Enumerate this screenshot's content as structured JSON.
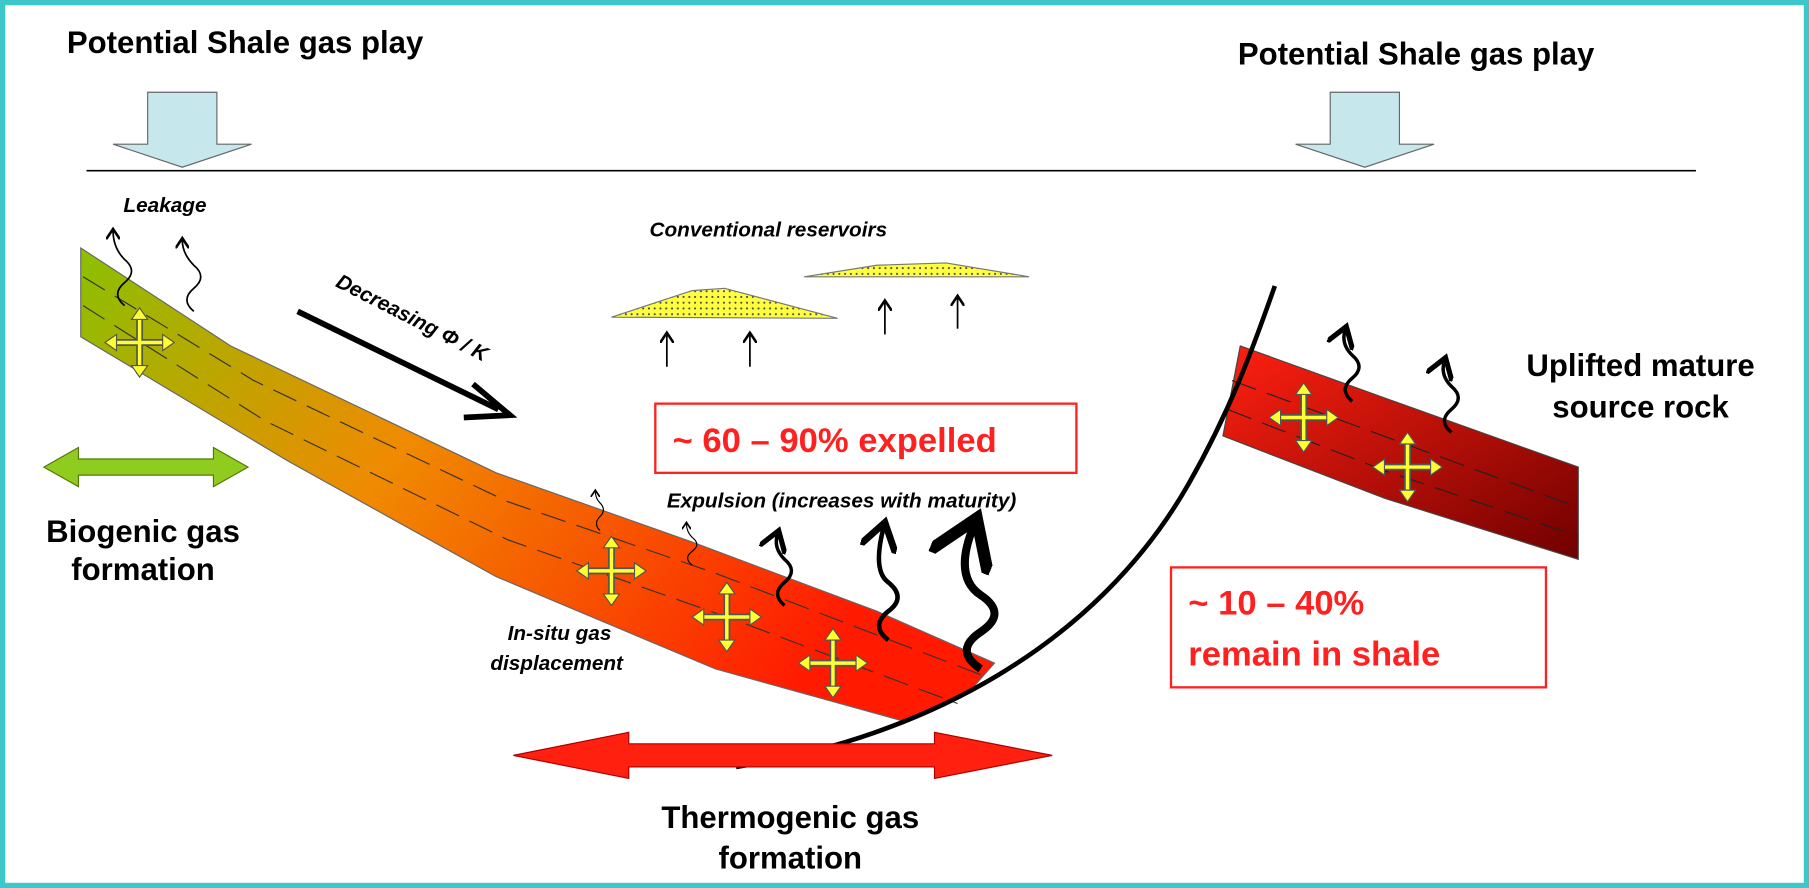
{
  "labels": {
    "play_left": "Potential Shale gas play",
    "play_right": "Potential Shale gas play",
    "leakage": "Leakage",
    "conventional": "Conventional reservoirs",
    "decreasing": "Decreasing Φ / K",
    "expelled": "~ 60 – 90% expelled",
    "expulsion": "Expulsion (increases with maturity)",
    "insitu": [
      "In-situ gas",
      "displacement"
    ],
    "biogenic": [
      "Biogenic gas",
      "formation"
    ],
    "thermogenic": [
      "Thermogenic gas",
      "formation"
    ],
    "uplifted": [
      "Uplifted mature",
      "source rock"
    ],
    "remain": [
      "~ 10 – 40%",
      "remain in shale"
    ]
  }
}
